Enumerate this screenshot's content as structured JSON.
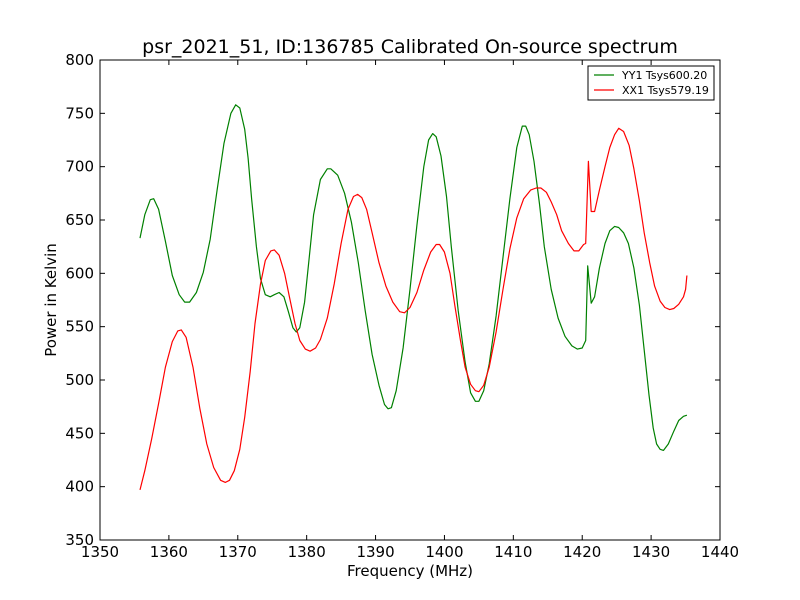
{
  "chart_data": {
    "type": "line",
    "title": "psr_2021_51, ID:136785 Calibrated On-source spectrum",
    "xlabel": "Frequency (MHz)",
    "ylabel": "Power in Kelvin",
    "xlim": [
      1350,
      1440
    ],
    "ylim": [
      350,
      800
    ],
    "x_ticks": [
      1350,
      1360,
      1370,
      1380,
      1390,
      1400,
      1410,
      1420,
      1430,
      1440
    ],
    "y_ticks": [
      350,
      400,
      450,
      500,
      550,
      600,
      650,
      700,
      750,
      800
    ],
    "grid": false,
    "legend_position": "top-right",
    "series": [
      {
        "name": "YY1 Tsys600.20",
        "color": "#008000",
        "points": [
          [
            1355.8,
            633
          ],
          [
            1356.5,
            655
          ],
          [
            1357.3,
            669
          ],
          [
            1357.8,
            670
          ],
          [
            1358.5,
            660
          ],
          [
            1359.5,
            630
          ],
          [
            1360.5,
            598
          ],
          [
            1361.5,
            580
          ],
          [
            1362.3,
            573
          ],
          [
            1363.0,
            573
          ],
          [
            1364.0,
            582
          ],
          [
            1365.0,
            601
          ],
          [
            1366.0,
            632
          ],
          [
            1367.0,
            678
          ],
          [
            1368.0,
            722
          ],
          [
            1369.0,
            750
          ],
          [
            1369.7,
            758
          ],
          [
            1370.3,
            755
          ],
          [
            1371.0,
            735
          ],
          [
            1371.5,
            708
          ],
          [
            1372.0,
            670
          ],
          [
            1372.7,
            625
          ],
          [
            1373.3,
            595
          ],
          [
            1374.0,
            580
          ],
          [
            1374.7,
            578
          ],
          [
            1375.3,
            580
          ],
          [
            1376.0,
            582
          ],
          [
            1376.7,
            578
          ],
          [
            1377.3,
            565
          ],
          [
            1378.0,
            549
          ],
          [
            1378.5,
            545
          ],
          [
            1379.0,
            549
          ],
          [
            1379.7,
            573
          ],
          [
            1380.3,
            610
          ],
          [
            1381.0,
            655
          ],
          [
            1382.0,
            688
          ],
          [
            1383.0,
            698
          ],
          [
            1383.5,
            698
          ],
          [
            1384.5,
            692
          ],
          [
            1385.5,
            675
          ],
          [
            1386.5,
            648
          ],
          [
            1387.5,
            610
          ],
          [
            1388.5,
            565
          ],
          [
            1389.5,
            524
          ],
          [
            1390.5,
            495
          ],
          [
            1391.3,
            477
          ],
          [
            1391.8,
            473
          ],
          [
            1392.3,
            474
          ],
          [
            1393.0,
            490
          ],
          [
            1394.0,
            530
          ],
          [
            1395.0,
            585
          ],
          [
            1396.0,
            645
          ],
          [
            1397.0,
            700
          ],
          [
            1397.7,
            725
          ],
          [
            1398.3,
            731
          ],
          [
            1398.8,
            728
          ],
          [
            1399.5,
            710
          ],
          [
            1400.3,
            672
          ],
          [
            1401.0,
            625
          ],
          [
            1402.0,
            565
          ],
          [
            1403.0,
            517
          ],
          [
            1403.8,
            488
          ],
          [
            1404.5,
            480
          ],
          [
            1405.0,
            480
          ],
          [
            1405.7,
            490
          ],
          [
            1406.5,
            515
          ],
          [
            1407.5,
            560
          ],
          [
            1408.5,
            615
          ],
          [
            1409.5,
            670
          ],
          [
            1410.5,
            718
          ],
          [
            1411.3,
            738
          ],
          [
            1411.8,
            738
          ],
          [
            1412.3,
            730
          ],
          [
            1413.0,
            705
          ],
          [
            1413.8,
            665
          ],
          [
            1414.5,
            625
          ],
          [
            1415.5,
            585
          ],
          [
            1416.5,
            558
          ],
          [
            1417.5,
            541
          ],
          [
            1418.5,
            532
          ],
          [
            1419.3,
            529
          ],
          [
            1420.0,
            530
          ],
          [
            1420.5,
            537
          ],
          [
            1420.8,
            607
          ],
          [
            1421.3,
            572
          ],
          [
            1421.8,
            578
          ],
          [
            1422.5,
            605
          ],
          [
            1423.3,
            628
          ],
          [
            1424.0,
            640
          ],
          [
            1424.7,
            644
          ],
          [
            1425.3,
            643
          ],
          [
            1426.0,
            638
          ],
          [
            1426.7,
            628
          ],
          [
            1427.5,
            605
          ],
          [
            1428.3,
            570
          ],
          [
            1429.0,
            528
          ],
          [
            1429.7,
            486
          ],
          [
            1430.3,
            455
          ],
          [
            1430.8,
            440
          ],
          [
            1431.3,
            435
          ],
          [
            1431.8,
            434
          ],
          [
            1432.5,
            440
          ],
          [
            1433.3,
            452
          ],
          [
            1434.0,
            462
          ],
          [
            1434.7,
            466
          ],
          [
            1435.2,
            467
          ]
        ]
      },
      {
        "name": "XX1 Tsys579.19",
        "color": "#ff0000",
        "points": [
          [
            1355.8,
            397
          ],
          [
            1356.5,
            415
          ],
          [
            1357.5,
            445
          ],
          [
            1358.5,
            478
          ],
          [
            1359.5,
            512
          ],
          [
            1360.5,
            536
          ],
          [
            1361.3,
            546
          ],
          [
            1361.8,
            547
          ],
          [
            1362.5,
            540
          ],
          [
            1363.5,
            512
          ],
          [
            1364.5,
            473
          ],
          [
            1365.5,
            440
          ],
          [
            1366.5,
            418
          ],
          [
            1367.5,
            406
          ],
          [
            1368.2,
            404
          ],
          [
            1368.8,
            406
          ],
          [
            1369.5,
            415
          ],
          [
            1370.3,
            435
          ],
          [
            1371.0,
            465
          ],
          [
            1371.8,
            508
          ],
          [
            1372.5,
            553
          ],
          [
            1373.3,
            590
          ],
          [
            1374.0,
            612
          ],
          [
            1374.8,
            621
          ],
          [
            1375.3,
            622
          ],
          [
            1376.0,
            617
          ],
          [
            1376.8,
            600
          ],
          [
            1377.5,
            578
          ],
          [
            1378.3,
            553
          ],
          [
            1379.0,
            537
          ],
          [
            1379.8,
            529
          ],
          [
            1380.5,
            527
          ],
          [
            1381.3,
            530
          ],
          [
            1382.0,
            538
          ],
          [
            1383.0,
            558
          ],
          [
            1384.0,
            590
          ],
          [
            1385.0,
            628
          ],
          [
            1386.0,
            660
          ],
          [
            1386.8,
            672
          ],
          [
            1387.4,
            674
          ],
          [
            1388.0,
            671
          ],
          [
            1388.7,
            660
          ],
          [
            1389.5,
            638
          ],
          [
            1390.5,
            610
          ],
          [
            1391.5,
            588
          ],
          [
            1392.5,
            573
          ],
          [
            1393.5,
            564
          ],
          [
            1394.2,
            563
          ],
          [
            1395.0,
            568
          ],
          [
            1396.0,
            582
          ],
          [
            1397.0,
            603
          ],
          [
            1398.0,
            620
          ],
          [
            1398.8,
            627
          ],
          [
            1399.3,
            627
          ],
          [
            1400.0,
            620
          ],
          [
            1400.8,
            600
          ],
          [
            1401.5,
            570
          ],
          [
            1402.3,
            538
          ],
          [
            1403.0,
            512
          ],
          [
            1403.8,
            496
          ],
          [
            1404.5,
            490
          ],
          [
            1405.0,
            489
          ],
          [
            1405.7,
            495
          ],
          [
            1406.5,
            512
          ],
          [
            1407.5,
            545
          ],
          [
            1408.5,
            585
          ],
          [
            1409.5,
            623
          ],
          [
            1410.5,
            652
          ],
          [
            1411.5,
            670
          ],
          [
            1412.5,
            678
          ],
          [
            1413.3,
            680
          ],
          [
            1414.0,
            680
          ],
          [
            1414.8,
            676
          ],
          [
            1415.5,
            667
          ],
          [
            1416.3,
            655
          ],
          [
            1417.0,
            640
          ],
          [
            1418.0,
            628
          ],
          [
            1418.8,
            621
          ],
          [
            1419.5,
            621
          ],
          [
            1420.2,
            627
          ],
          [
            1420.5,
            628
          ],
          [
            1420.9,
            705
          ],
          [
            1421.3,
            658
          ],
          [
            1421.8,
            658
          ],
          [
            1422.5,
            678
          ],
          [
            1423.3,
            700
          ],
          [
            1424.0,
            718
          ],
          [
            1424.7,
            730
          ],
          [
            1425.3,
            736
          ],
          [
            1426.0,
            733
          ],
          [
            1426.8,
            720
          ],
          [
            1427.5,
            698
          ],
          [
            1428.3,
            668
          ],
          [
            1429.0,
            638
          ],
          [
            1429.8,
            610
          ],
          [
            1430.5,
            588
          ],
          [
            1431.3,
            574
          ],
          [
            1432.0,
            568
          ],
          [
            1432.7,
            566
          ],
          [
            1433.3,
            567
          ],
          [
            1434.0,
            571
          ],
          [
            1434.7,
            578
          ],
          [
            1435.0,
            585
          ],
          [
            1435.2,
            598
          ]
        ]
      }
    ]
  }
}
